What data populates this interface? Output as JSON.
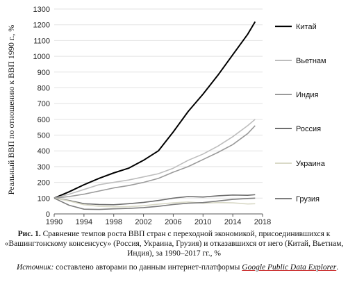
{
  "chart_data": {
    "type": "line",
    "ylabel": "Реальный ВВП по отношению к ВВП 1990 г., %",
    "xlabel": "",
    "xlim": [
      1990,
      2018
    ],
    "ylim": [
      0,
      1300
    ],
    "xticks": [
      1990,
      1994,
      1998,
      2002,
      2006,
      2010,
      2014,
      2018
    ],
    "yticks": [
      0,
      100,
      200,
      300,
      400,
      500,
      600,
      700,
      800,
      900,
      1000,
      1100,
      1200,
      1300
    ],
    "grid": "horizontal",
    "legend_position": "right",
    "series": [
      {
        "name": "Китай",
        "color": "#000000",
        "x": [
          1990,
          1992,
          1994,
          1996,
          1998,
          2000,
          2002,
          2004,
          2006,
          2008,
          2010,
          2012,
          2014,
          2016,
          2017
        ],
        "values": [
          100,
          140,
          185,
          225,
          260,
          290,
          340,
          400,
          520,
          650,
          760,
          880,
          1010,
          1140,
          1220
        ]
      },
      {
        "name": "Вьетнам",
        "color": "#bdbdbd",
        "x": [
          1990,
          1992,
          1994,
          1996,
          1998,
          2000,
          2002,
          2004,
          2006,
          2008,
          2010,
          2012,
          2014,
          2016,
          2017
        ],
        "values": [
          100,
          125,
          155,
          185,
          200,
          215,
          235,
          255,
          290,
          340,
          380,
          430,
          490,
          560,
          600
        ]
      },
      {
        "name": "Индия",
        "color": "#9a9a9a",
        "x": [
          1990,
          1992,
          1994,
          1996,
          1998,
          2000,
          2002,
          2004,
          2006,
          2008,
          2010,
          2012,
          2014,
          2016,
          2017
        ],
        "values": [
          100,
          110,
          125,
          145,
          165,
          180,
          200,
          225,
          265,
          300,
          345,
          390,
          440,
          510,
          560
        ]
      },
      {
        "name": "Россия",
        "color": "#6e6e6e",
        "x": [
          1990,
          1992,
          1994,
          1996,
          1998,
          2000,
          2002,
          2004,
          2006,
          2008,
          2010,
          2012,
          2014,
          2016,
          2017
        ],
        "values": [
          100,
          85,
          65,
          60,
          58,
          65,
          73,
          85,
          100,
          110,
          107,
          115,
          120,
          118,
          122
        ]
      },
      {
        "name": "Украина",
        "color": "#d9d9c7",
        "x": [
          1990,
          1992,
          1994,
          1996,
          1998,
          2000,
          2002,
          2004,
          2006,
          2008,
          2010,
          2012,
          2014,
          2016,
          2017
        ],
        "values": [
          100,
          82,
          58,
          48,
          45,
          46,
          52,
          62,
          70,
          76,
          68,
          72,
          70,
          63,
          65
        ]
      },
      {
        "name": "Грузия",
        "color": "#7d7d7d",
        "x": [
          1990,
          1992,
          1994,
          1996,
          1998,
          2000,
          2002,
          2004,
          2006,
          2008,
          2010,
          2012,
          2014,
          2016,
          2017
        ],
        "values": [
          100,
          55,
          30,
          28,
          32,
          35,
          40,
          48,
          60,
          68,
          72,
          82,
          92,
          98,
          100
        ]
      }
    ]
  },
  "caption": {
    "label": "Рис. 1.",
    "text": " Сравнение темпов роста ВВП стран с переходной экономикой, присоединившихся к «Вашингтонскому консенсусу» (Россия, Украина, Грузия) и отказавшихся от него (Китай, Вьетнам, Индия), за 1990–2017 гг., %"
  },
  "source": {
    "label": "Источник:",
    "text": " составлено авторами по данным интернет-платформы ",
    "link": "Google Public Data Explorer",
    "end": "."
  }
}
